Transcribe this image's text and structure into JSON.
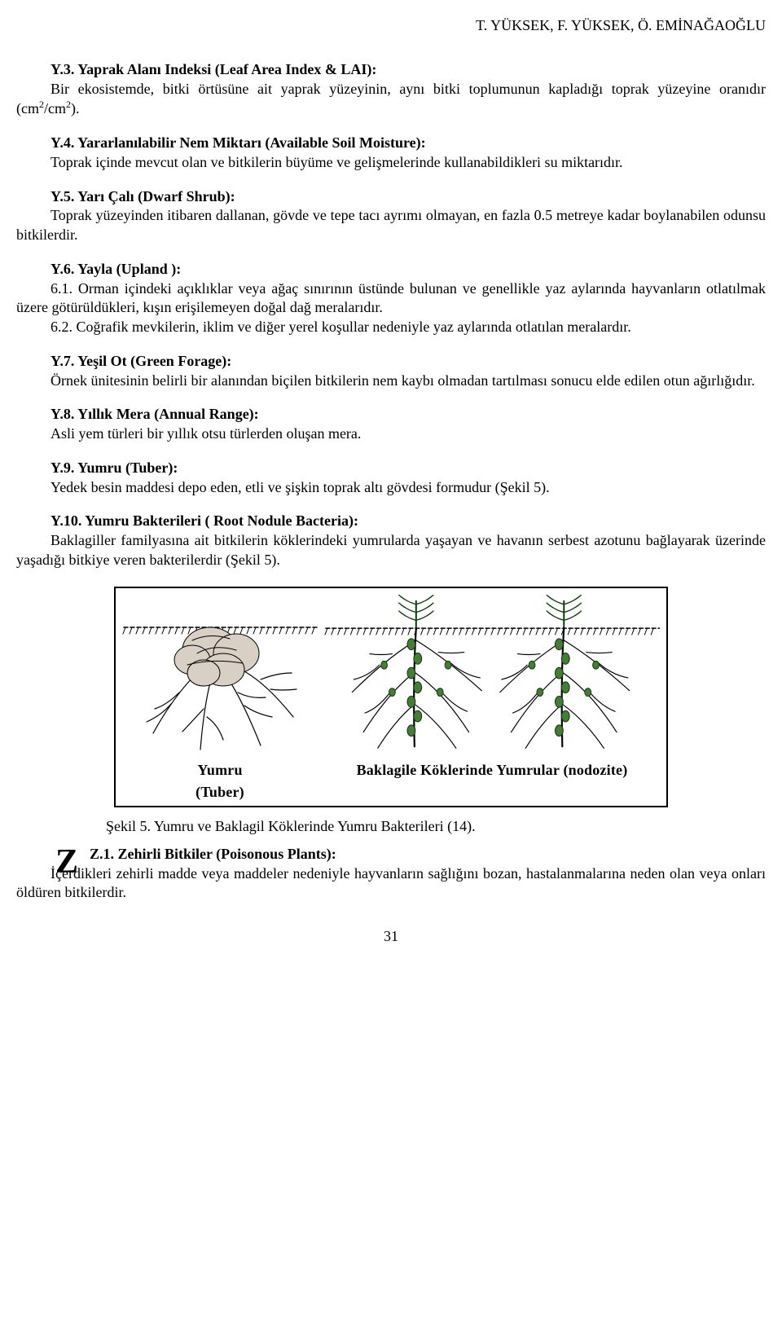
{
  "page": {
    "running_head": "T. YÜKSEK, F. YÜKSEK, Ö. EMİNAĞAOĞLU",
    "page_number": "31"
  },
  "entries": {
    "y3": {
      "head": "Y.3. Yaprak Alanı Indeksi (Leaf Area Index & LAI):",
      "body_html": "Bir ekosistemde, bitki örtüsüne ait yaprak yüzeyinin, aynı bitki toplumunun kapladığı toprak yüzeyine oranıdır (cm<span class=\"sup\">2</span>/cm<span class=\"sup\">2</span>)."
    },
    "y4": {
      "head": "Y.4. Yararlanılabilir Nem Miktarı (Available Soil Moisture):",
      "body": "Toprak içinde mevcut olan ve bitkilerin büyüme ve gelişmelerinde kullanabildikleri su miktarıdır."
    },
    "y5": {
      "head": "Y.5. Yarı Çalı (Dwarf Shrub):",
      "body": "Toprak yüzeyinden itibaren dallanan, gövde ve tepe tacı ayrımı olmayan, en fazla 0.5 metreye kadar boylanabilen odunsu bitkilerdir."
    },
    "y6": {
      "head": "Y.6. Yayla (Upland ):",
      "p1": "6.1. Orman içindeki açıklıklar veya ağaç sınırının üstünde bulunan ve genellikle yaz aylarında hayvanların otlatılmak üzere götürüldükleri, kışın erişilemeyen doğal dağ meralarıdır.",
      "p2": "6.2. Coğrafik mevkilerin, iklim ve diğer yerel koşullar nedeniyle yaz aylarında otlatılan meralardır."
    },
    "y7": {
      "head": "Y.7. Yeşil Ot (Green Forage):",
      "body": "Örnek ünitesinin belirli bir alanından biçilen bitkilerin nem kaybı olmadan tartılması sonucu elde edilen otun ağırlığıdır."
    },
    "y8": {
      "head": "Y.8. Yıllık Mera (Annual Range):",
      "body": "Asli yem türleri bir yıllık otsu türlerden oluşan mera."
    },
    "y9": {
      "head": "Y.9. Yumru (Tuber):",
      "body": "Yedek besin maddesi depo eden, etli ve şişkin toprak altı gövdesi formudur (Şekil 5)."
    },
    "y10": {
      "head": "Y.10. Yumru Bakterileri ( Root Nodule Bacteria):",
      "body": "Baklagiller familyasına ait bitkilerin köklerindeki yumrularda yaşayan ve havanın serbest azotunu bağlayarak üzerinde yaşadığı bitkiye veren bakterilerdir (Şekil 5)."
    },
    "z1": {
      "letter": "Z",
      "head": "Z.1. Zehirli Bitkiler (Poisonous Plants):",
      "body": "İçerdikleri zehirli madde veya maddeler nedeniyle hayvanların sağlığını bozan, hastalanmalarına neden olan veya onları öldüren bitkilerdir."
    }
  },
  "figure": {
    "left_caption_l1": "Yumru",
    "left_caption_l2": "(Tuber)",
    "right_caption": "Baklagile Köklerinde Yumrular (nodozite)",
    "caption": "Şekil 5. Yumru ve Baklagil Köklerinde Yumru Bakterileri (14).",
    "tuber_fill": "#d8d0c4",
    "tuber_stroke": "#000000",
    "root_stroke": "#000000",
    "nodule_fill": "#4a7a3a",
    "leaf_fill": "#2f6b2a",
    "leaf_stroke": "#0a3a0a",
    "soil_stroke": "#000000"
  }
}
